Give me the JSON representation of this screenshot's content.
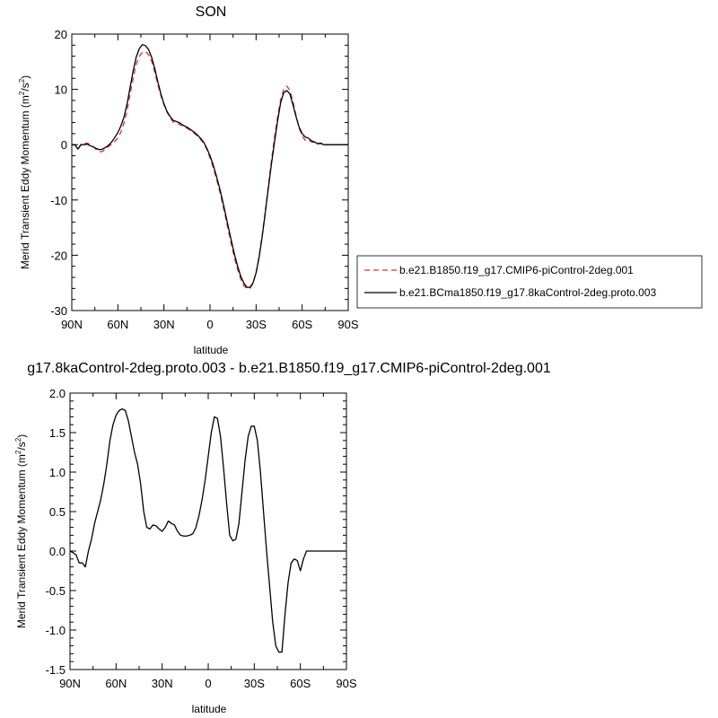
{
  "chart_data": [
    {
      "type": "line",
      "title": "SON",
      "xlabel": "latitude",
      "ylabel_main": "Merid Transient Eddy Momentum (m",
      "ylabel_sup1": "2",
      "ylabel_mid": "/s",
      "ylabel_sup2": "2",
      "ylabel_end": ")",
      "xlim": [
        90,
        -90
      ],
      "ylim": [
        -30,
        20
      ],
      "x_ticks": [
        90,
        60,
        30,
        0,
        -30,
        -60,
        -90
      ],
      "x_tick_labels": [
        "90N",
        "60N",
        "30N",
        "0",
        "30S",
        "60S",
        "90S"
      ],
      "y_ticks": [
        -30,
        -20,
        -10,
        0,
        10,
        20
      ],
      "y_tick_labels": [
        "-30",
        "-20",
        "-10",
        "0",
        "10",
        "20"
      ],
      "legend_position": "right",
      "series": [
        {
          "name": "b.e21.B1850.f19_g17.CMIP6-piControl-2deg.001",
          "color": "#e03030",
          "dash": "6,4",
          "x": [
            90,
            88,
            86,
            84,
            82,
            80,
            78,
            76,
            74,
            72,
            70,
            68,
            66,
            64,
            62,
            60,
            58,
            56,
            54,
            52,
            50,
            48,
            46,
            44,
            42,
            40,
            38,
            36,
            34,
            32,
            30,
            28,
            26,
            24,
            22,
            20,
            18,
            16,
            14,
            12,
            10,
            8,
            6,
            4,
            2,
            0,
            -2,
            -4,
            -6,
            -8,
            -10,
            -12,
            -14,
            -16,
            -18,
            -20,
            -22,
            -24,
            -26,
            -28,
            -30,
            -32,
            -34,
            -36,
            -38,
            -40,
            -42,
            -44,
            -46,
            -48,
            -50,
            -52,
            -54,
            -56,
            -58,
            -60,
            -62,
            -64,
            -66,
            -68,
            -70,
            -72,
            -74,
            -76,
            -78,
            -80,
            -82,
            -84,
            -86,
            -88,
            -90
          ],
          "y": [
            0.0,
            0.0,
            -0.8,
            0.1,
            0.2,
            0.3,
            0.0,
            -0.4,
            -0.9,
            -1.3,
            -1.2,
            -0.8,
            -0.3,
            0.1,
            0.6,
            1.2,
            2.3,
            3.9,
            6.2,
            9.2,
            12.1,
            14.6,
            16.0,
            16.7,
            16.8,
            16.3,
            15.1,
            13.1,
            10.9,
            8.9,
            7.2,
            5.9,
            4.9,
            4.1,
            3.9,
            3.7,
            3.4,
            3.1,
            2.8,
            2.4,
            2.0,
            1.5,
            0.9,
            0.2,
            -0.9,
            -2.4,
            -4.1,
            -6.0,
            -8.1,
            -10.5,
            -13.0,
            -15.6,
            -18.2,
            -20.6,
            -22.6,
            -24.3,
            -25.5,
            -26.0,
            -26.0,
            -25.1,
            -23.1,
            -20.1,
            -16.3,
            -12.0,
            -7.4,
            -2.9,
            1.3,
            5.0,
            8.1,
            10.0,
            10.6,
            9.8,
            7.9,
            5.3,
            3.0,
            1.6,
            0.8,
            0.9,
            0.5,
            0.4,
            0.1,
            0.2,
            -0.1,
            0.0,
            0.0,
            0.0,
            0.0,
            0.0,
            0.0,
            0.0,
            0.0
          ]
        },
        {
          "name": "b.e21.BCma1850.f19_g17.8kaControl-2deg.proto.003",
          "color": "#000000",
          "dash": "",
          "x": [
            90,
            88,
            86,
            84,
            82,
            80,
            78,
            76,
            74,
            72,
            70,
            68,
            66,
            64,
            62,
            60,
            58,
            56,
            54,
            52,
            50,
            48,
            46,
            44,
            42,
            40,
            38,
            36,
            34,
            32,
            30,
            28,
            26,
            24,
            22,
            20,
            18,
            16,
            14,
            12,
            10,
            8,
            6,
            4,
            2,
            0,
            -2,
            -4,
            -6,
            -8,
            -10,
            -12,
            -14,
            -16,
            -18,
            -20,
            -22,
            -24,
            -26,
            -28,
            -30,
            -32,
            -34,
            -36,
            -38,
            -40,
            -42,
            -44,
            -46,
            -48,
            -50,
            -52,
            -54,
            -56,
            -58,
            -60,
            -62,
            -64,
            -66,
            -68,
            -70,
            -72,
            -74,
            -76,
            -78,
            -80,
            -82,
            -84,
            -86,
            -88,
            -90
          ],
          "y": [
            0.0,
            0.0,
            -0.8,
            0.0,
            0.0,
            0.1,
            -0.2,
            -0.4,
            -0.7,
            -0.9,
            -0.8,
            -0.5,
            -0.1,
            0.5,
            1.3,
            2.2,
            3.4,
            5.0,
            7.4,
            10.4,
            13.4,
            15.9,
            17.4,
            18.1,
            17.9,
            17.2,
            15.8,
            13.8,
            11.4,
            9.2,
            7.4,
            6.0,
            5.1,
            4.4,
            4.2,
            4.0,
            3.6,
            3.3,
            3.0,
            2.6,
            2.2,
            1.7,
            1.1,
            0.4,
            -0.7,
            -2.0,
            -3.6,
            -5.5,
            -7.6,
            -9.9,
            -12.4,
            -15.0,
            -17.5,
            -19.9,
            -22.0,
            -23.8,
            -25.0,
            -25.8,
            -25.8,
            -25.0,
            -23.2,
            -20.3,
            -16.6,
            -12.3,
            -7.8,
            -3.5,
            0.5,
            4.3,
            7.6,
            9.4,
            9.8,
            9.2,
            7.2,
            5.1,
            3.2,
            2.0,
            1.4,
            1.2,
            0.7,
            0.5,
            0.2,
            0.3,
            0.0,
            0.0,
            0.0,
            0.0,
            0.0,
            0.0,
            0.0,
            0.0,
            0.0
          ]
        }
      ]
    },
    {
      "type": "line",
      "title": "g17.8kaControl-2deg.proto.003 - b.e21.B1850.f19_g17.CMIP6-piControl-2deg.001",
      "xlabel": "latitude",
      "ylabel_main": "Merid Transient Eddy Momentum (m",
      "ylabel_sup1": "2",
      "ylabel_mid": "/s",
      "ylabel_sup2": "2",
      "ylabel_end": ")",
      "xlim": [
        90,
        -90
      ],
      "ylim": [
        -1.5,
        2.0
      ],
      "x_ticks": [
        90,
        60,
        30,
        0,
        -30,
        -60,
        -90
      ],
      "x_tick_labels": [
        "90N",
        "60N",
        "30N",
        "0",
        "30S",
        "60S",
        "90S"
      ],
      "y_ticks": [
        -1.5,
        -1.0,
        -0.5,
        0.0,
        0.5,
        1.0,
        1.5,
        2.0
      ],
      "y_tick_labels": [
        "-1.5",
        "-1.0",
        "-0.5",
        "0.0",
        "0.5",
        "1.0",
        "1.5",
        "2.0"
      ],
      "series": [
        {
          "color": "#000000",
          "dash": "",
          "x": [
            90,
            88,
            86,
            84,
            82,
            80,
            78,
            76,
            74,
            72,
            70,
            68,
            66,
            64,
            62,
            60,
            58,
            56,
            54,
            52,
            50,
            48,
            46,
            44,
            42,
            40,
            38,
            36,
            34,
            32,
            30,
            28,
            26,
            24,
            22,
            20,
            18,
            16,
            14,
            12,
            10,
            8,
            6,
            4,
            2,
            0,
            -2,
            -4,
            -6,
            -8,
            -10,
            -12,
            -14,
            -16,
            -18,
            -20,
            -22,
            -24,
            -26,
            -28,
            -30,
            -32,
            -34,
            -36,
            -38,
            -40,
            -42,
            -44,
            -46,
            -48,
            -50,
            -52,
            -54,
            -56,
            -58,
            -60,
            -62,
            -64,
            -66,
            -68,
            -70,
            -72,
            -74,
            -76,
            -78,
            -80,
            -82,
            -84,
            -86,
            -88,
            -90
          ],
          "y": [
            0.0,
            -0.02,
            -0.05,
            -0.15,
            -0.15,
            -0.2,
            0.0,
            0.15,
            0.35,
            0.5,
            0.65,
            0.85,
            1.1,
            1.4,
            1.6,
            1.72,
            1.78,
            1.8,
            1.78,
            1.65,
            1.45,
            1.25,
            1.1,
            0.85,
            0.5,
            0.3,
            0.28,
            0.33,
            0.32,
            0.28,
            0.25,
            0.3,
            0.38,
            0.35,
            0.33,
            0.25,
            0.2,
            0.19,
            0.19,
            0.2,
            0.22,
            0.3,
            0.45,
            0.65,
            0.9,
            1.2,
            1.5,
            1.7,
            1.68,
            1.45,
            1.05,
            0.6,
            0.2,
            0.13,
            0.15,
            0.35,
            0.75,
            1.15,
            1.45,
            1.58,
            1.58,
            1.4,
            1.0,
            0.5,
            0.0,
            -0.45,
            -0.9,
            -1.2,
            -1.28,
            -1.28,
            -0.8,
            -0.4,
            -0.15,
            -0.1,
            -0.12,
            -0.25,
            -0.1,
            0.0,
            0.0,
            0.0,
            0.0,
            0.0,
            0.0,
            0.0,
            0.0,
            0.0,
            0.0,
            0.0,
            0.0,
            0.0,
            0.0
          ]
        }
      ]
    }
  ]
}
